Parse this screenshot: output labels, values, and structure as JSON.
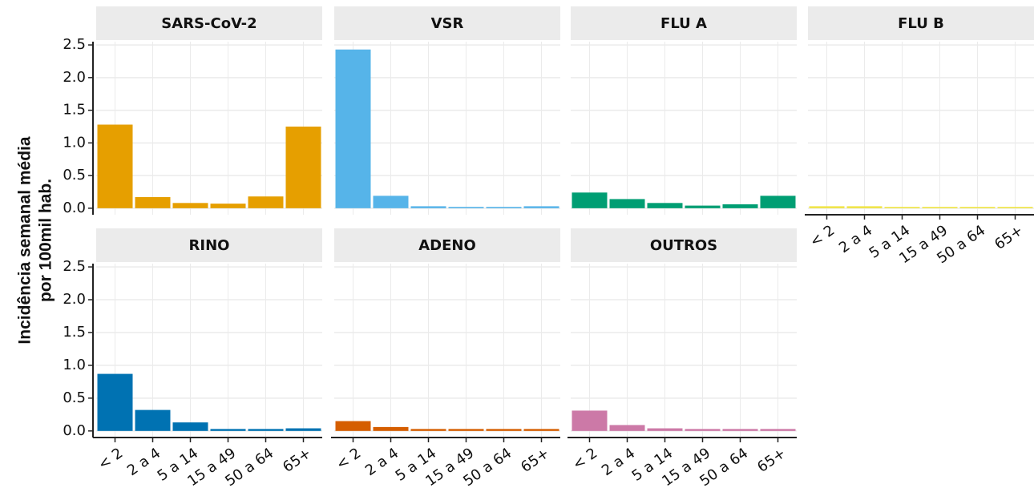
{
  "ylabel": [
    "Incidência  semanal média",
    "por 100mil hab."
  ],
  "chart_data": [
    {
      "type": "bar",
      "title": "SARS-CoV-2",
      "color": "#E69F00",
      "values": [
        1.28,
        0.17,
        0.08,
        0.07,
        0.18,
        1.25
      ],
      "ylim": [
        -0.1,
        2.55
      ],
      "yticks": [
        {
          "value": 0,
          "label": "0.0"
        },
        0.5,
        {
          "value": 1,
          "label": "1.0"
        },
        1.5,
        {
          "value": 2,
          "label": "2.0"
        },
        2.5
      ],
      "grid": true
    },
    {
      "type": "bar",
      "title": "VSR",
      "color": "#56B4E9",
      "values": [
        2.43,
        0.19,
        0.03,
        0.02,
        0.02,
        0.03
      ],
      "ylim": [
        -0.1,
        2.55
      ],
      "yticks": [
        0,
        0.5,
        1,
        1.5,
        2,
        2.5
      ],
      "grid": true
    },
    {
      "type": "bar",
      "title": "FLU A",
      "color": "#009E73",
      "values": [
        0.24,
        0.14,
        0.08,
        0.04,
        0.06,
        0.19
      ],
      "ylim": [
        -0.1,
        2.55
      ],
      "yticks": [
        0,
        0.5,
        1,
        1.5,
        2,
        2.5
      ],
      "grid": true
    },
    {
      "type": "bar",
      "title": "FLU B",
      "color": "#F0E442",
      "categories": [
        "< 2",
        "2 a 4",
        "5 a 14",
        "15 a 49",
        "50 a 64",
        "65+"
      ],
      "values": [
        0.03,
        0.03,
        0.02,
        0.02,
        0.02,
        0.02
      ],
      "ylim": [
        -0.1,
        2.55
      ],
      "yticks": [
        0,
        0.5,
        1,
        1.5,
        2,
        2.5
      ],
      "grid": true
    },
    {
      "type": "bar",
      "title": "RINO",
      "color": "#0072B2",
      "categories": [
        "< 2",
        "2 a 4",
        "5 a 14",
        "15 a 49",
        "50 a 64",
        "65+"
      ],
      "values": [
        0.87,
        0.32,
        0.13,
        0.03,
        0.03,
        0.04
      ],
      "ylim": [
        -0.1,
        2.55
      ],
      "yticks": [
        {
          "value": 0,
          "label": "0.0"
        },
        0.5,
        {
          "value": 1,
          "label": "1.0"
        },
        1.5,
        {
          "value": 2,
          "label": "2.0"
        },
        2.5
      ],
      "grid": true
    },
    {
      "type": "bar",
      "title": "ADENO",
      "color": "#D55E00",
      "categories": [
        "< 2",
        "2 a 4",
        "5 a 14",
        "15 a 49",
        "50 a 64",
        "65+"
      ],
      "values": [
        0.15,
        0.06,
        0.03,
        0.03,
        0.03,
        0.03
      ],
      "ylim": [
        -0.1,
        2.55
      ],
      "yticks": [
        0,
        0.5,
        1,
        1.5,
        2,
        2.5
      ],
      "grid": true
    },
    {
      "type": "bar",
      "title": "OUTROS",
      "color": "#CC79A7",
      "categories": [
        "< 2",
        "2 a 4",
        "5 a 14",
        "15 a 49",
        "50 a 64",
        "65+"
      ],
      "values": [
        0.31,
        0.09,
        0.04,
        0.03,
        0.03,
        0.03
      ],
      "ylim": [
        -0.1,
        2.55
      ],
      "yticks": [
        0,
        0.5,
        1,
        1.5,
        2,
        2.5
      ],
      "grid": true
    }
  ]
}
